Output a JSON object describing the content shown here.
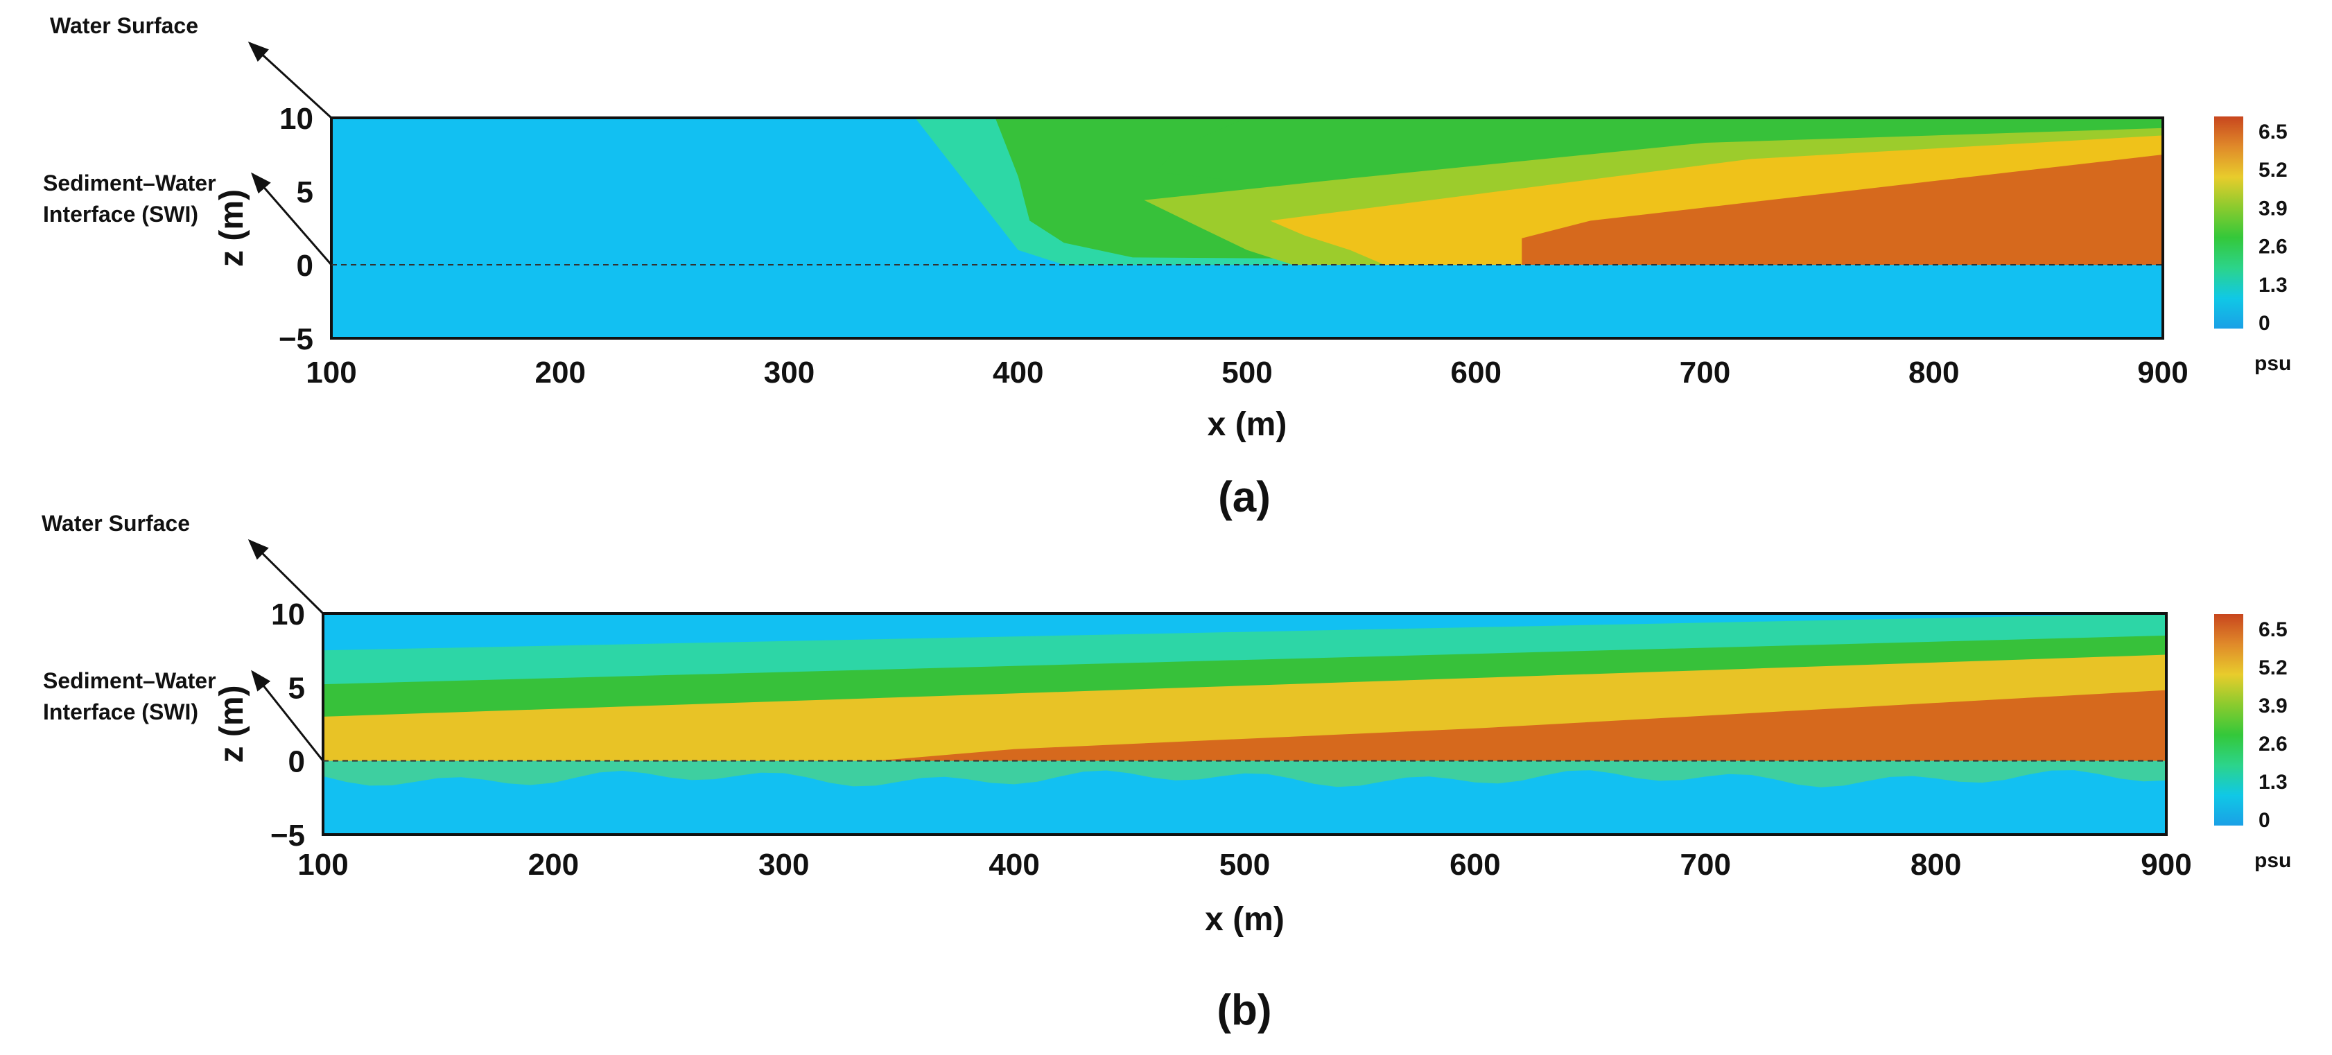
{
  "chart_data": [
    {
      "type": "heatmap",
      "panel_label": "(a)",
      "xlabel": "x (m)",
      "ylabel": "z (m)",
      "xlim": [
        100,
        900
      ],
      "ylim": [
        -5,
        10
      ],
      "xticks": [
        "100",
        "200",
        "300",
        "400",
        "500",
        "600",
        "700",
        "800",
        "900"
      ],
      "yticks": [
        "10",
        "5",
        "0",
        "−5"
      ],
      "annotations": [
        "Water Surface",
        "Sediment–Water",
        "Interface (SWI)"
      ],
      "colorbar": {
        "ticks": [
          "6.5",
          "5.2",
          "3.9",
          "2.6",
          "1.3",
          "0"
        ],
        "unit": "psu",
        "colors": [
          "#1aa0e6",
          "#10c8e6",
          "#2cd48a",
          "#34c83a",
          "#8acb2e",
          "#e8cc2c",
          "#e08a2a",
          "#c8461e"
        ]
      },
      "bands": [
        {
          "range": "0–1.3",
          "color": "#12c0f2",
          "region": "water x 100–360 and entire sediment layer z<0"
        },
        {
          "range": "1.3–2.6",
          "color": "#2dd8a6",
          "region": "transition near x≈360–400"
        },
        {
          "range": "2.6–3.9",
          "color": "#37c13a",
          "region": "wedge from x≈400, upper water column toward x=900"
        },
        {
          "range": "3.9–5.2",
          "color": "#9ccc2c",
          "region": "tongue from x≈450"
        },
        {
          "range": "5.2–6.5",
          "color": "#efc21a",
          "region": "tongue from x≈520, top layer at x=900"
        },
        {
          "range": ">6.5",
          "color": "#d6691d",
          "region": "near-bed wedge from x≈620 to 900, z 0–7"
        }
      ]
    },
    {
      "type": "heatmap",
      "panel_label": "(b)",
      "xlabel": "x (m)",
      "ylabel": "z (m)",
      "xlim": [
        100,
        900
      ],
      "ylim": [
        -5,
        10
      ],
      "xticks": [
        "100",
        "200",
        "300",
        "400",
        "500",
        "600",
        "700",
        "800",
        "900"
      ],
      "yticks": [
        "10",
        "5",
        "0",
        "−5"
      ],
      "annotations": [
        "Water Surface",
        "Sediment–Water",
        "Interface (SWI)"
      ],
      "colorbar": {
        "ticks": [
          "6.5",
          "5.2",
          "3.9",
          "2.6",
          "1.3",
          "0"
        ],
        "unit": "psu",
        "colors": [
          "#1aa0e6",
          "#10c8e6",
          "#2cd48a",
          "#34c83a",
          "#8acb2e",
          "#e8cc2c",
          "#e08a2a",
          "#c8461e"
        ]
      },
      "bands": [
        {
          "range": "0–1.3",
          "color": "#12c0f2",
          "region": "top of water column and deep sediment"
        },
        {
          "range": "1.3–3.9",
          "color": "#37c13a",
          "region": "sloping layers rising from x=100 to x=900"
        },
        {
          "range": "3.9–6.5",
          "color": "#e8c326",
          "region": "lower water column above SWI"
        },
        {
          "range": ">6.5",
          "color": "#d6691d",
          "region": "near-bed wedge from x≈340 to 900, z 0–5"
        },
        {
          "range": "1.3–2.6",
          "color": "#3ecfa0",
          "region": "shallow sediment band just below SWI"
        }
      ]
    }
  ]
}
